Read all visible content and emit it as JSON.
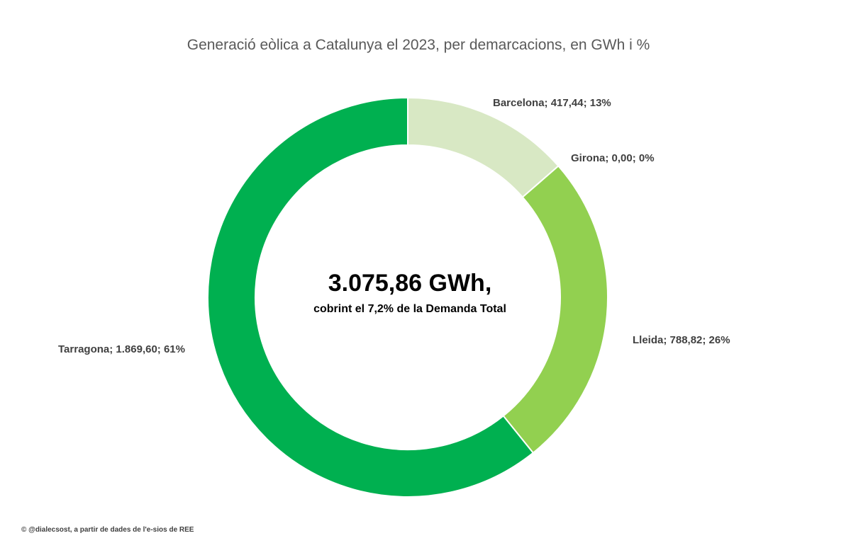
{
  "chart_data": {
    "type": "pie",
    "variant": "doughnut",
    "title": "Generació eòlica a Catalunya el 2023, per demarcacions, en GWh i  %",
    "slices": [
      {
        "name": "Barcelona",
        "value": 417.44,
        "percent": 13,
        "label": "Barcelona; 417,44; 13%",
        "color": "#d8e8c4"
      },
      {
        "name": "Girona",
        "value": 0.0,
        "percent": 0,
        "label": "Girona; 0,00; 0%",
        "color": "#c5e0a5"
      },
      {
        "name": "Lleida",
        "value": 788.82,
        "percent": 26,
        "label": "Lleida; 788,82; 26%",
        "color": "#92d050"
      },
      {
        "name": "Tarragona",
        "value": 1869.6,
        "percent": 61,
        "label": "Tarragona; 1.869,60; 61%",
        "color": "#00b050"
      }
    ],
    "center_text": {
      "main": "3.075,86 GWh,",
      "sub": "cobrint el 7,2% de la Demanda Total"
    },
    "legend": "none"
  },
  "footer": {
    "credit": "© @dialecsost, a partir de dades de l'e-sios de REE"
  }
}
